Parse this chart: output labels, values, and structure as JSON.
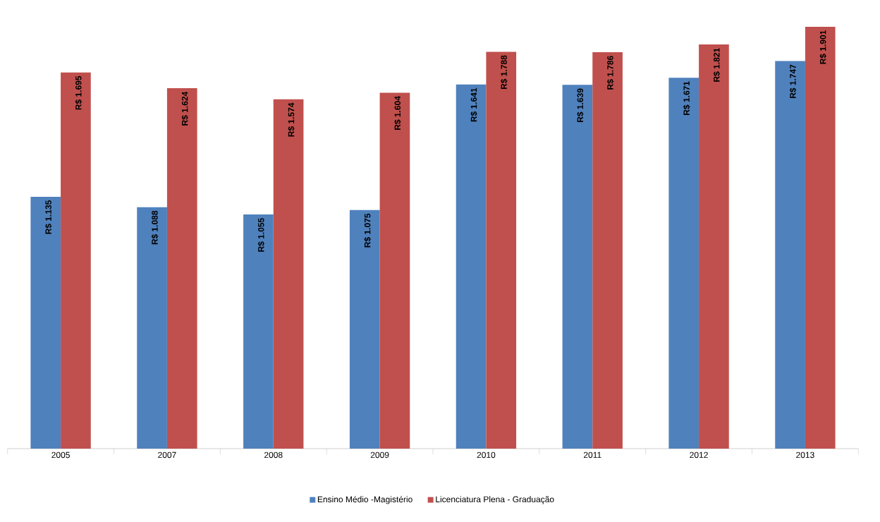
{
  "chart_data": {
    "type": "bar",
    "categories": [
      "2005",
      "2007",
      "2008",
      "2009",
      "2010",
      "2011",
      "2012",
      "2013"
    ],
    "series": [
      {
        "name": "Ensino Médio -Magistério",
        "color": "#4f81bd",
        "values": [
          1135,
          1088,
          1055,
          1075,
          1641,
          1639,
          1671,
          1747
        ],
        "value_labels": [
          "R$ 1.135",
          "R$ 1.088",
          "R$ 1.055",
          "R$ 1.075",
          "R$ 1.641",
          "R$ 1.639",
          "R$ 1.671",
          "R$ 1.747"
        ]
      },
      {
        "name": "Licenciatura Plena - Graduação",
        "color": "#c0504d",
        "values": [
          1695,
          1624,
          1574,
          1604,
          1788,
          1786,
          1821,
          1901
        ],
        "value_labels": [
          "R$ 1.695",
          "R$ 1.624",
          "R$ 1.574",
          "R$ 1.604",
          "R$ 1.788",
          "R$ 1.786",
          "R$ 1.821",
          "R$ 1.901"
        ]
      }
    ],
    "legend": "bottom"
  }
}
